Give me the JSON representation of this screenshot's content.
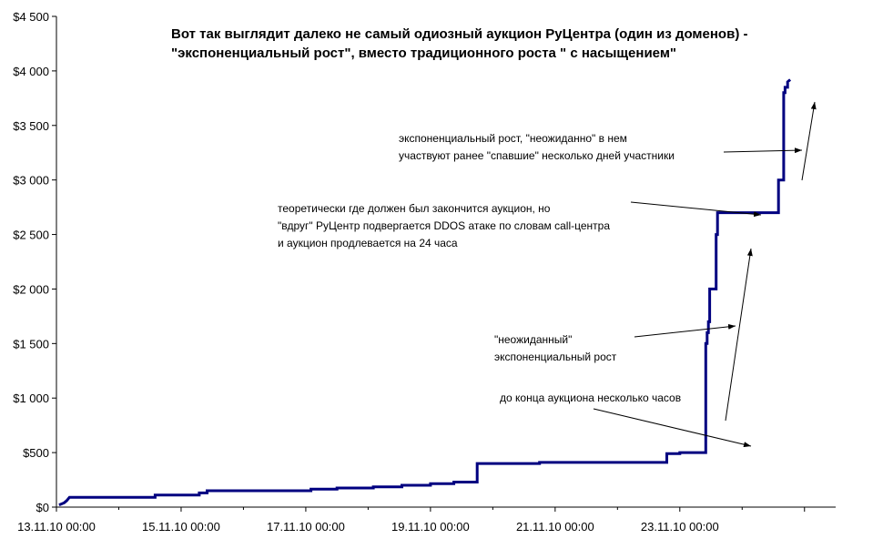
{
  "chart_data": {
    "type": "line",
    "title_lines": [
      "Вот так выглядит далеко не самый одиозный аукцион РуЦентра (один из доменов) -",
      "\"экспоненциальный рост\", вместо традиционного роста \" с насыщением\""
    ],
    "xlabel": "",
    "ylabel": "",
    "ylim": [
      0,
      4500
    ],
    "xlim": [
      "2010-11-13T00:00",
      "2010-11-25T12:00"
    ],
    "yticks": [
      0,
      500,
      1000,
      1500,
      2000,
      2500,
      3000,
      3500,
      4000,
      4500
    ],
    "ytick_labels": [
      "$0",
      "$500",
      "$1 000",
      "$1 500",
      "$2 000",
      "$2 500",
      "$3 000",
      "$3 500",
      "$4 000",
      "$4 500"
    ],
    "xticks": [
      "2010-11-13T00:00",
      "2010-11-15T00:00",
      "2010-11-17T00:00",
      "2010-11-19T00:00",
      "2010-11-21T00:00",
      "2010-11-23T00:00"
    ],
    "xtick_labels": [
      "13.11.10 00:00",
      "15.11.10 00:00",
      "17.11.10 00:00",
      "19.11.10 00:00",
      "21.11.10 00:00",
      "23.11.10 00:00"
    ],
    "grid": false,
    "line_color": "#000080",
    "series": [
      {
        "x": [
          "2010-11-13T01:00",
          "2010-11-13T03:00",
          "2010-11-13T03:00",
          "2010-11-13T04:00",
          "2010-11-13T04:00",
          "2010-11-13T05:00",
          "2010-11-13T05:00",
          "2010-11-14T14:00",
          "2010-11-14T14:00",
          "2010-11-15T07:00",
          "2010-11-15T07:00",
          "2010-11-15T10:00",
          "2010-11-15T10:00",
          "2010-11-17T02:00",
          "2010-11-17T02:00",
          "2010-11-17T12:00",
          "2010-11-17T12:00",
          "2010-11-18T02:00",
          "2010-11-18T02:00",
          "2010-11-18T13:00",
          "2010-11-18T13:00",
          "2010-11-19T00:00",
          "2010-11-19T00:00",
          "2010-11-19T09:00",
          "2010-11-19T09:00",
          "2010-11-19T18:00",
          "2010-11-19T18:00",
          "2010-11-20T18:00",
          "2010-11-20T18:00",
          "2010-11-22T19:00",
          "2010-11-22T19:00",
          "2010-11-23T00:00",
          "2010-11-23T00:00",
          "2010-11-23T10:00",
          "2010-11-23T10:00",
          "2010-11-23T10:30",
          "2010-11-23T10:30",
          "2010-11-23T11:00",
          "2010-11-23T11:00",
          "2010-11-23T11:30",
          "2010-11-23T11:30",
          "2010-11-23T14:00",
          "2010-11-23T14:00",
          "2010-11-23T14:30",
          "2010-11-23T14:30",
          "2010-11-23T15:00",
          "2010-11-23T15:00",
          "2010-11-24T14:00",
          "2010-11-24T14:00",
          "2010-11-24T16:00",
          "2010-11-24T16:00",
          "2010-11-24T16:30",
          "2010-11-24T16:30",
          "2010-11-24T17:30",
          "2010-11-24T17:30",
          "2010-11-24T18:30"
        ],
        "y": [
          20,
          40,
          40,
          60,
          60,
          90,
          90,
          90,
          110,
          110,
          130,
          130,
          150,
          150,
          165,
          165,
          175,
          175,
          185,
          185,
          200,
          200,
          215,
          215,
          230,
          230,
          400,
          400,
          410,
          410,
          490,
          490,
          500,
          500,
          1500,
          1500,
          1600,
          1600,
          1700,
          1700,
          2000,
          2000,
          2500,
          2500,
          2700,
          2700,
          2700,
          2700,
          3000,
          3000,
          3800,
          3800,
          3850,
          3850,
          3900,
          3920
        ]
      }
    ],
    "annotations": [
      {
        "lines": [
          "экспоненциальный рост, \"неожиданно\" в нем",
          "участвуют ранее \"спавшие\" несколько дней участники"
        ]
      },
      {
        "lines": [
          "теоретически где должен был закончится аукцион, но",
          "\"вдруг\"  РуЦентр подвергается DDOS атаке по словам call-центра",
          " и аукцион продлевается на 24 часа"
        ]
      },
      {
        "lines": [
          "\"неожиданный\"",
          "экспоненциальный рост"
        ]
      },
      {
        "lines": [
          "до конца аукциона несколько часов"
        ]
      }
    ]
  }
}
